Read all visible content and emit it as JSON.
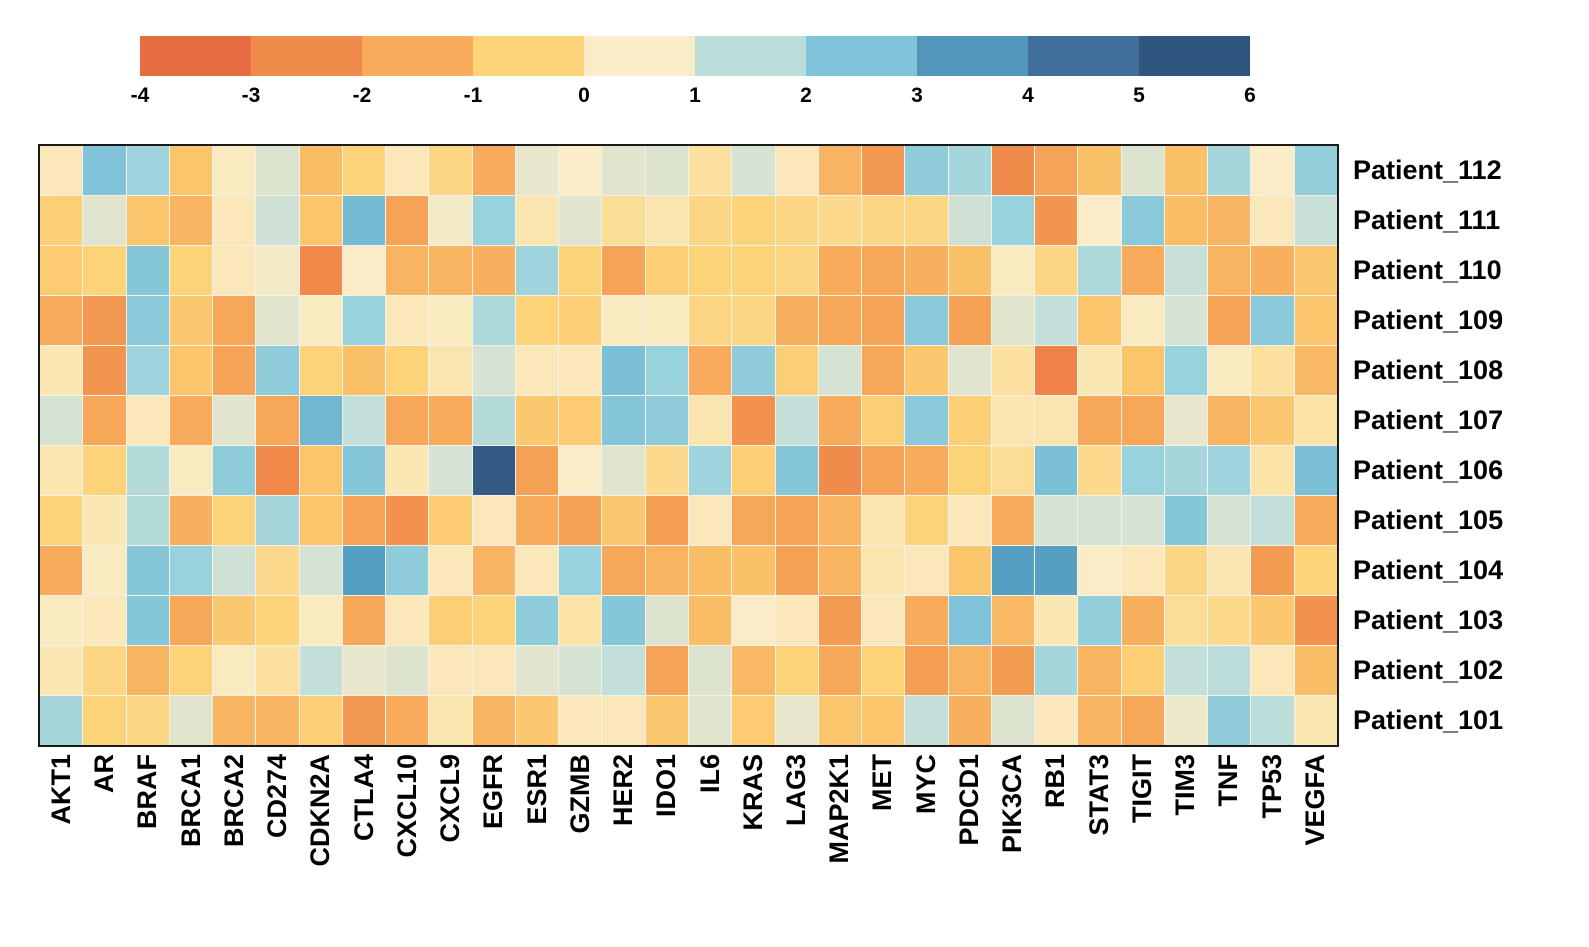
{
  "figure": {
    "background": "#ffffff",
    "border_color": "#1a1a1a"
  },
  "colorbar": {
    "position": "top",
    "segments": 10,
    "min": -4,
    "max": 6,
    "ticks": [
      "-4",
      "-3",
      "-2",
      "-1",
      "0",
      "1",
      "2",
      "3",
      "4",
      "5",
      "6"
    ]
  },
  "chart_data": {
    "type": "heatmap",
    "title": "",
    "xlabel": "",
    "ylabel": "",
    "value_range": [
      -4,
      6
    ],
    "legend_position": "top",
    "columns": [
      "AKT1",
      "AR",
      "BRAF",
      "BRCA1",
      "BRCA2",
      "CD274",
      "CDKN2A",
      "CTLA4",
      "CXCL10",
      "CXCL9",
      "EGFR",
      "ESR1",
      "GZMB",
      "HER2",
      "IDO1",
      "IL6",
      "KRAS",
      "LAG3",
      "MAP2K1",
      "MET",
      "MYC",
      "PDCD1",
      "PIK3CA",
      "RB1",
      "STAT3",
      "TIGIT",
      "TIM3",
      "TNF",
      "TP53",
      "VEGFA"
    ],
    "rows": [
      "Patient_112",
      "Patient_111",
      "Patient_110",
      "Patient_109",
      "Patient_108",
      "Patient_107",
      "Patient_106",
      "Patient_105",
      "Patient_104",
      "Patient_103",
      "Patient_102",
      "Patient_101"
    ],
    "values": [
      [
        0.3,
        2.5,
        1.9,
        -0.9,
        0.4,
        1.0,
        -1.1,
        -0.5,
        0.3,
        -0.4,
        -1.5,
        0.8,
        0.5,
        0.9,
        1.0,
        -0.1,
        1.1,
        0.3,
        -1.3,
        -2.1,
        2.2,
        1.8,
        -2.5,
        -1.7,
        -1.0,
        1.0,
        -1.0,
        1.8,
        0.5,
        2.1
      ],
      [
        -0.6,
        0.9,
        -0.9,
        -1.3,
        0.3,
        1.2,
        -0.9,
        2.7,
        -1.7,
        0.6,
        2.0,
        0.1,
        0.9,
        -0.2,
        0.1,
        -0.4,
        -0.5,
        -0.4,
        -0.3,
        -0.4,
        -0.4,
        1.2,
        2.0,
        -2.2,
        0.5,
        2.3,
        -1.1,
        -1.3,
        0.3,
        1.3
      ],
      [
        -0.7,
        -0.5,
        2.4,
        -0.5,
        0.3,
        0.6,
        -2.6,
        0.5,
        -1.3,
        -1.3,
        -1.4,
        1.9,
        -0.5,
        -1.7,
        -0.6,
        -0.5,
        -0.5,
        -0.4,
        -1.5,
        -1.6,
        -1.4,
        -1.0,
        0.4,
        -0.4,
        1.7,
        -1.5,
        1.3,
        -1.3,
        -1.4,
        -0.8
      ],
      [
        -1.5,
        -2.1,
        2.3,
        -0.8,
        -1.6,
        0.9,
        0.4,
        2.0,
        0.3,
        0.4,
        1.7,
        -0.5,
        -0.6,
        0.4,
        0.4,
        -0.4,
        -0.4,
        -1.4,
        -1.6,
        -1.7,
        2.3,
        -1.8,
        0.9,
        1.4,
        -0.9,
        0.4,
        1.1,
        -1.7,
        2.3,
        -0.9
      ],
      [
        0.2,
        -2.2,
        1.9,
        -0.9,
        -1.7,
        2.2,
        -0.5,
        -1.0,
        -0.5,
        0.1,
        1.1,
        0.3,
        0.3,
        2.6,
        2.0,
        -1.5,
        2.2,
        -0.6,
        1.1,
        -1.6,
        -0.8,
        0.9,
        -0.1,
        -2.8,
        0.2,
        -0.9,
        2.0,
        0.4,
        -0.1,
        -1.2
      ],
      [
        1.1,
        -1.6,
        0.3,
        -1.5,
        0.9,
        -1.6,
        2.8,
        1.4,
        -1.6,
        -1.5,
        1.6,
        -0.8,
        -0.7,
        2.4,
        2.2,
        0.1,
        -2.3,
        1.4,
        -1.5,
        -0.6,
        2.3,
        -0.6,
        0.1,
        0.1,
        -1.6,
        -1.6,
        0.8,
        -1.3,
        -0.8,
        0.0
      ],
      [
        0.1,
        -0.5,
        1.6,
        0.4,
        2.2,
        -2.6,
        -0.9,
        2.4,
        0.2,
        1.1,
        5.3,
        -1.8,
        0.5,
        0.9,
        -0.3,
        1.9,
        -0.6,
        2.4,
        -2.5,
        -1.7,
        -1.5,
        -0.5,
        -0.2,
        2.6,
        -0.3,
        2.0,
        1.8,
        1.9,
        0.0,
        2.6
      ],
      [
        -0.5,
        0.2,
        1.6,
        -1.4,
        -0.5,
        1.8,
        -0.9,
        -1.7,
        -2.3,
        -0.7,
        0.3,
        -1.5,
        -1.8,
        -0.8,
        -1.9,
        0.3,
        -1.6,
        -1.7,
        -1.3,
        0.1,
        -0.5,
        0.3,
        -1.5,
        1.1,
        1.1,
        1.1,
        2.4,
        1.1,
        1.4,
        -1.5
      ],
      [
        -1.5,
        0.4,
        2.4,
        2.0,
        1.2,
        -0.3,
        1.1,
        3.3,
        2.2,
        0.3,
        -1.3,
        0.3,
        2.0,
        -1.6,
        -1.3,
        -1.1,
        -1.0,
        -1.8,
        -1.3,
        0.1,
        0.3,
        -0.9,
        3.3,
        3.3,
        0.5,
        0.3,
        -0.4,
        0.2,
        -2.0,
        -0.5
      ],
      [
        0.4,
        0.3,
        2.4,
        -1.6,
        -0.8,
        -0.5,
        0.4,
        -1.6,
        0.3,
        -0.6,
        -0.5,
        2.2,
        0.0,
        2.4,
        1.0,
        -1.1,
        0.5,
        0.3,
        -2.0,
        0.3,
        -1.5,
        2.5,
        -1.2,
        0.2,
        2.1,
        -1.4,
        -0.2,
        -0.3,
        -0.8,
        -2.3
      ],
      [
        0.2,
        -0.4,
        -1.3,
        -0.5,
        0.4,
        -0.1,
        1.4,
        0.8,
        1.0,
        0.3,
        0.3,
        0.9,
        1.1,
        1.4,
        -1.7,
        1.0,
        -1.2,
        -0.5,
        -1.6,
        -0.5,
        -1.9,
        -1.3,
        -2.0,
        1.8,
        -1.3,
        -0.6,
        1.4,
        1.5,
        0.3,
        -1.1
      ],
      [
        1.8,
        -0.5,
        -0.4,
        0.9,
        -1.3,
        -1.3,
        -0.6,
        -2.1,
        -1.5,
        0.1,
        -1.3,
        -0.8,
        0.3,
        0.3,
        -0.8,
        0.9,
        -0.7,
        0.8,
        -0.9,
        -0.9,
        1.4,
        -1.4,
        1.0,
        0.3,
        -1.3,
        -1.6,
        0.7,
        2.2,
        1.5,
        0.2
      ]
    ],
    "colormap_stops": [
      [
        -4.0,
        "#E05A3D"
      ],
      [
        -3.2,
        "#EB7644"
      ],
      [
        -2.4,
        "#F18F4C"
      ],
      [
        -1.6,
        "#F6A758"
      ],
      [
        -1.0,
        "#FAC168"
      ],
      [
        -0.5,
        "#FCD379"
      ],
      [
        0.0,
        "#FCE3A8"
      ],
      [
        0.5,
        "#F9ECC6"
      ],
      [
        0.9,
        "#E2E5CE"
      ],
      [
        1.4,
        "#C2DFD9"
      ],
      [
        2.0,
        "#98D2DC"
      ],
      [
        2.6,
        "#7CC0D7"
      ],
      [
        3.3,
        "#55A0C2"
      ],
      [
        4.0,
        "#497FA6"
      ],
      [
        5.0,
        "#36618D"
      ],
      [
        6.0,
        "#2A4B71"
      ]
    ]
  }
}
